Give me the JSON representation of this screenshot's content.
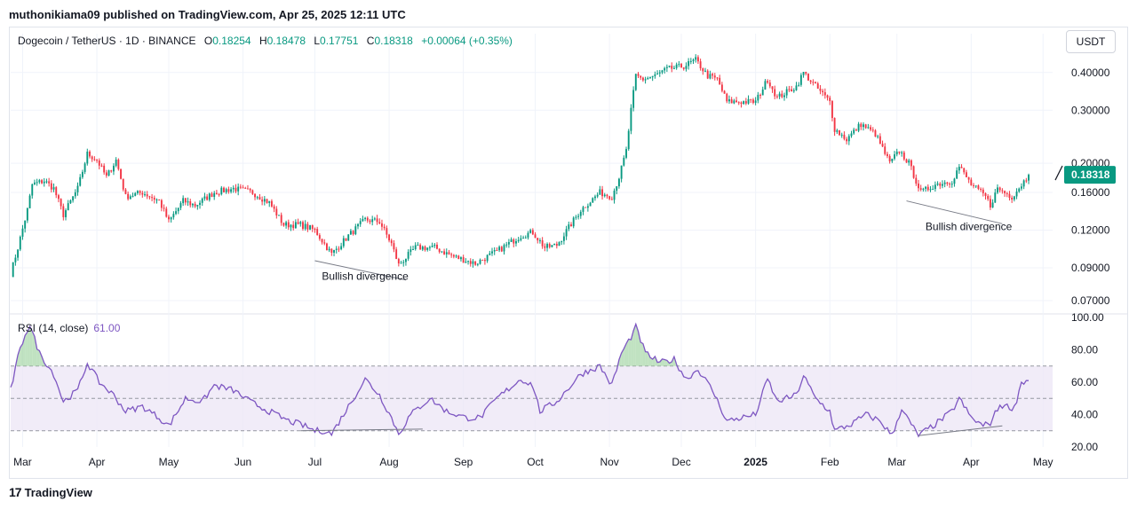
{
  "publisher_line": "muthonikiama09 published on TradingView.com, Apr 25, 2025 12:11 UTC",
  "footer": {
    "brand": "TradingView",
    "logo_text": "17"
  },
  "legend": {
    "symbol": "Dogecoin / TetherUS · 1D · BINANCE",
    "o_label": "O",
    "o": "0.18254",
    "h_label": "H",
    "h": "0.18478",
    "l_label": "L",
    "l": "0.17751",
    "c_label": "C",
    "c": "0.18318",
    "change": "+0.00064 (+0.35%)"
  },
  "currency_button": "USDT",
  "rsi_legend": {
    "label": "RSI (14, close)",
    "value": "61.00"
  },
  "colors": {
    "up": "#089981",
    "down": "#f23645",
    "rsi": "#7e57c2",
    "rsi_band": "#ede7f6",
    "grid": "#f0f3fa",
    "last_price_bg": "#089981"
  },
  "chart_data": [
    {
      "type": "candlestick",
      "scale": "log",
      "ylim": [
        0.065,
        0.47
      ],
      "y_ticks": [
        "0.40000",
        "0.30000",
        "0.20000",
        "0.16000",
        "0.12000",
        "0.09000",
        "0.07000"
      ],
      "y_tick_values": [
        0.4,
        0.3,
        0.2,
        0.16,
        0.12,
        0.09,
        0.07
      ],
      "last_price": 0.18318,
      "last_price_label": "0.18318",
      "x_range": [
        "2024-02-25",
        "2025-05-05"
      ],
      "x_ticks": [
        {
          "label": "Mar",
          "date": "2024-03-01"
        },
        {
          "label": "Apr",
          "date": "2024-04-01"
        },
        {
          "label": "May",
          "date": "2024-05-01"
        },
        {
          "label": "Jun",
          "date": "2024-06-01"
        },
        {
          "label": "Jul",
          "date": "2024-07-01"
        },
        {
          "label": "Aug",
          "date": "2024-08-01"
        },
        {
          "label": "Sep",
          "date": "2024-09-01"
        },
        {
          "label": "Oct",
          "date": "2024-10-01"
        },
        {
          "label": "Nov",
          "date": "2024-11-01"
        },
        {
          "label": "Dec",
          "date": "2024-12-01"
        },
        {
          "label": "2025",
          "date": "2025-01-01",
          "bold": true
        },
        {
          "label": "Feb",
          "date": "2025-02-01"
        },
        {
          "label": "Mar",
          "date": "2025-03-01"
        },
        {
          "label": "Apr",
          "date": "2025-04-01"
        },
        {
          "label": "May",
          "date": "2025-05-01"
        }
      ],
      "anchors": [
        [
          "2024-02-25",
          0.086
        ],
        [
          "2024-02-28",
          0.105
        ],
        [
          "2024-03-03",
          0.14
        ],
        [
          "2024-03-05",
          0.17
        ],
        [
          "2024-03-10",
          0.175
        ],
        [
          "2024-03-14",
          0.165
        ],
        [
          "2024-03-18",
          0.135
        ],
        [
          "2024-03-24",
          0.165
        ],
        [
          "2024-03-28",
          0.215
        ],
        [
          "2024-04-01",
          0.205
        ],
        [
          "2024-04-05",
          0.18
        ],
        [
          "2024-04-09",
          0.205
        ],
        [
          "2024-04-13",
          0.155
        ],
        [
          "2024-04-20",
          0.16
        ],
        [
          "2024-04-27",
          0.15
        ],
        [
          "2024-05-01",
          0.128
        ],
        [
          "2024-05-07",
          0.15
        ],
        [
          "2024-05-12",
          0.145
        ],
        [
          "2024-05-20",
          0.16
        ],
        [
          "2024-05-28",
          0.165
        ],
        [
          "2024-06-05",
          0.16
        ],
        [
          "2024-06-12",
          0.148
        ],
        [
          "2024-06-18",
          0.125
        ],
        [
          "2024-06-25",
          0.125
        ],
        [
          "2024-07-01",
          0.12
        ],
        [
          "2024-07-05",
          0.108
        ],
        [
          "2024-07-08",
          0.1
        ],
        [
          "2024-07-15",
          0.115
        ],
        [
          "2024-07-22",
          0.13
        ],
        [
          "2024-07-28",
          0.128
        ],
        [
          "2024-08-02",
          0.108
        ],
        [
          "2024-08-05",
          0.092
        ],
        [
          "2024-08-12",
          0.105
        ],
        [
          "2024-08-20",
          0.105
        ],
        [
          "2024-08-28",
          0.098
        ],
        [
          "2024-09-06",
          0.093
        ],
        [
          "2024-09-15",
          0.102
        ],
        [
          "2024-09-25",
          0.115
        ],
        [
          "2024-09-30",
          0.118
        ],
        [
          "2024-10-05",
          0.105
        ],
        [
          "2024-10-10",
          0.107
        ],
        [
          "2024-10-20",
          0.14
        ],
        [
          "2024-10-28",
          0.16
        ],
        [
          "2024-11-02",
          0.155
        ],
        [
          "2024-11-05",
          0.18
        ],
        [
          "2024-11-08",
          0.22
        ],
        [
          "2024-11-10",
          0.3
        ],
        [
          "2024-11-12",
          0.39
        ],
        [
          "2024-11-15",
          0.38
        ],
        [
          "2024-11-20",
          0.39
        ],
        [
          "2024-11-25",
          0.41
        ],
        [
          "2024-12-02",
          0.42
        ],
        [
          "2024-12-07",
          0.44
        ],
        [
          "2024-12-12",
          0.39
        ],
        [
          "2024-12-16",
          0.38
        ],
        [
          "2024-12-20",
          0.32
        ],
        [
          "2024-12-25",
          0.32
        ],
        [
          "2025-01-01",
          0.32
        ],
        [
          "2025-01-06",
          0.38
        ],
        [
          "2025-01-10",
          0.33
        ],
        [
          "2025-01-18",
          0.36
        ],
        [
          "2025-01-21",
          0.4
        ],
        [
          "2025-01-26",
          0.36
        ],
        [
          "2025-02-01",
          0.32
        ],
        [
          "2025-02-03",
          0.26
        ],
        [
          "2025-02-08",
          0.24
        ],
        [
          "2025-02-14",
          0.27
        ],
        [
          "2025-02-20",
          0.25
        ],
        [
          "2025-02-26",
          0.2
        ],
        [
          "2025-03-02",
          0.22
        ],
        [
          "2025-03-06",
          0.2
        ],
        [
          "2025-03-11",
          0.16
        ],
        [
          "2025-03-17",
          0.17
        ],
        [
          "2025-03-24",
          0.175
        ],
        [
          "2025-03-27",
          0.195
        ],
        [
          "2025-04-01",
          0.17
        ],
        [
          "2025-04-07",
          0.155
        ],
        [
          "2025-04-09",
          0.145
        ],
        [
          "2025-04-12",
          0.165
        ],
        [
          "2025-04-18",
          0.155
        ],
        [
          "2025-04-22",
          0.17
        ],
        [
          "2025-04-25",
          0.183
        ]
      ],
      "annotations": [
        {
          "text": "Bullish divergence",
          "from": [
            "2024-07-01",
            0.095
          ],
          "to": [
            "2024-08-08",
            0.082
          ],
          "label_at": [
            "2024-07-22",
            0.082
          ]
        },
        {
          "text": "Bullish divergence",
          "from": [
            "2025-03-05",
            0.15
          ],
          "to": [
            "2025-04-14",
            0.126
          ],
          "label_at": [
            "2025-03-31",
            0.12
          ]
        }
      ]
    },
    {
      "type": "line",
      "name": "RSI (14, close)",
      "ylim": [
        20,
        100
      ],
      "y_ticks": [
        "100.00",
        "80.00",
        "60.00",
        "40.00",
        "20.00"
      ],
      "y_tick_values": [
        100,
        80,
        60,
        40,
        20
      ],
      "bands": [
        70,
        50,
        30
      ],
      "last_value": 61.0,
      "points": [
        [
          "2024-02-25",
          55
        ],
        [
          "2024-02-28",
          75
        ],
        [
          "2024-03-02",
          90
        ],
        [
          "2024-03-04",
          95
        ],
        [
          "2024-03-08",
          78
        ],
        [
          "2024-03-14",
          65
        ],
        [
          "2024-03-18",
          48
        ],
        [
          "2024-03-24",
          55
        ],
        [
          "2024-03-28",
          72
        ],
        [
          "2024-04-02",
          60
        ],
        [
          "2024-04-08",
          52
        ],
        [
          "2024-04-13",
          42
        ],
        [
          "2024-04-20",
          45
        ],
        [
          "2024-04-27",
          38
        ],
        [
          "2024-05-01",
          33
        ],
        [
          "2024-05-08",
          50
        ],
        [
          "2024-05-15",
          48
        ],
        [
          "2024-05-20",
          58
        ],
        [
          "2024-05-28",
          55
        ],
        [
          "2024-06-04",
          48
        ],
        [
          "2024-06-12",
          42
        ],
        [
          "2024-06-20",
          36
        ],
        [
          "2024-06-25",
          34
        ],
        [
          "2024-07-01",
          30
        ],
        [
          "2024-07-05",
          30
        ],
        [
          "2024-07-08",
          28
        ],
        [
          "2024-07-15",
          45
        ],
        [
          "2024-07-22",
          62
        ],
        [
          "2024-07-28",
          52
        ],
        [
          "2024-08-02",
          38
        ],
        [
          "2024-08-05",
          28
        ],
        [
          "2024-08-10",
          40
        ],
        [
          "2024-08-18",
          50
        ],
        [
          "2024-08-25",
          42
        ],
        [
          "2024-09-02",
          38
        ],
        [
          "2024-09-08",
          38
        ],
        [
          "2024-09-15",
          50
        ],
        [
          "2024-09-25",
          62
        ],
        [
          "2024-09-30",
          58
        ],
        [
          "2024-10-03",
          42
        ],
        [
          "2024-10-10",
          48
        ],
        [
          "2024-10-20",
          65
        ],
        [
          "2024-10-28",
          70
        ],
        [
          "2024-11-02",
          58
        ],
        [
          "2024-11-06",
          78
        ],
        [
          "2024-11-10",
          88
        ],
        [
          "2024-11-12",
          94
        ],
        [
          "2024-11-16",
          78
        ],
        [
          "2024-11-22",
          72
        ],
        [
          "2024-11-28",
          74
        ],
        [
          "2024-12-03",
          62
        ],
        [
          "2024-12-08",
          68
        ],
        [
          "2024-12-14",
          55
        ],
        [
          "2024-12-20",
          36
        ],
        [
          "2024-12-26",
          38
        ],
        [
          "2025-01-01",
          40
        ],
        [
          "2025-01-06",
          62
        ],
        [
          "2025-01-10",
          48
        ],
        [
          "2025-01-18",
          52
        ],
        [
          "2025-01-21",
          64
        ],
        [
          "2025-01-26",
          50
        ],
        [
          "2025-02-01",
          42
        ],
        [
          "2025-02-03",
          30
        ],
        [
          "2025-02-10",
          34
        ],
        [
          "2025-02-16",
          40
        ],
        [
          "2025-02-22",
          36
        ],
        [
          "2025-02-27",
          27
        ],
        [
          "2025-03-03",
          44
        ],
        [
          "2025-03-06",
          36
        ],
        [
          "2025-03-10",
          27
        ],
        [
          "2025-03-17",
          34
        ],
        [
          "2025-03-24",
          42
        ],
        [
          "2025-03-27",
          50
        ],
        [
          "2025-04-01",
          38
        ],
        [
          "2025-04-06",
          33
        ],
        [
          "2025-04-09",
          35
        ],
        [
          "2025-04-13",
          46
        ],
        [
          "2025-04-19",
          44
        ],
        [
          "2025-04-22",
          60
        ],
        [
          "2025-04-25",
          61
        ]
      ],
      "annotations": [
        {
          "from": [
            "2024-06-25",
            30
          ],
          "to": [
            "2024-08-15",
            31
          ]
        },
        {
          "from": [
            "2025-03-10",
            27
          ],
          "to": [
            "2025-04-14",
            33
          ]
        }
      ]
    }
  ]
}
